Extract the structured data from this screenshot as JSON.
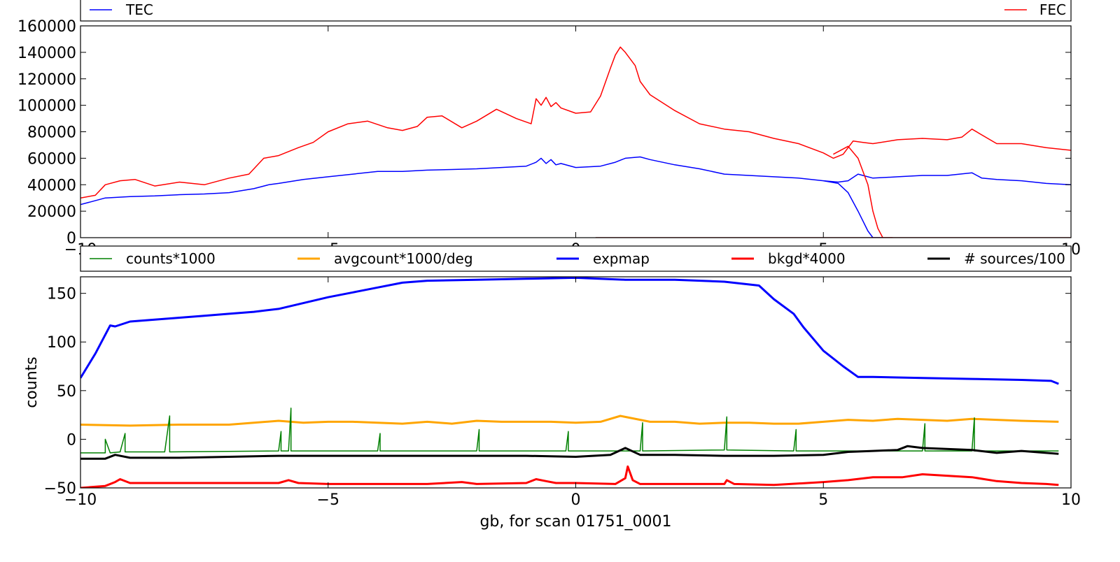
{
  "chart_data": [
    {
      "type": "line",
      "title": "",
      "xlabel": "",
      "ylabel": "",
      "xlim": [
        -10,
        10
      ],
      "ylim": [
        0,
        160000
      ],
      "xticks": [
        "−10",
        "−5",
        "0",
        "5",
        "10"
      ],
      "yticks": [
        "0",
        "20000",
        "40000",
        "60000",
        "80000",
        "100000",
        "120000",
        "140000",
        "160000"
      ],
      "grid": false,
      "legend_placement": "top",
      "legend": [
        {
          "name": "TEC",
          "color": "#0000ff"
        },
        {
          "name": "FEC",
          "color": "#ff0000"
        }
      ],
      "series": [
        {
          "name": "FEC",
          "color": "#ff0000",
          "x": [
            -10,
            -9.7,
            -9.5,
            -9.2,
            -8.9,
            -8.5,
            -8.0,
            -7.5,
            -7.0,
            -6.6,
            -6.3,
            -6.0,
            -5.6,
            -5.3,
            -5.0,
            -4.6,
            -4.2,
            -3.8,
            -3.5,
            -3.2,
            -3.0,
            -2.7,
            -2.3,
            -2.0,
            -1.6,
            -1.2,
            -0.9,
            -0.8,
            -0.7,
            -0.6,
            -0.5,
            -0.4,
            -0.3,
            0.0,
            0.3,
            0.5,
            0.7,
            0.8,
            0.9,
            1.0,
            1.2,
            1.3,
            1.5,
            2.0,
            2.5,
            3.0,
            3.5,
            4.0,
            4.5,
            5.0,
            5.2,
            5.4,
            5.6,
            5.8,
            6.0,
            6.5,
            7.0,
            7.5,
            7.8,
            8.0,
            8.5,
            9.0,
            9.5,
            10.0
          ],
          "y": [
            30000,
            32000,
            40000,
            43000,
            44000,
            39000,
            42000,
            40000,
            45000,
            48000,
            60000,
            62000,
            68000,
            72000,
            80000,
            86000,
            88000,
            83000,
            81000,
            84000,
            91000,
            92000,
            83000,
            88000,
            97000,
            90000,
            86000,
            105000,
            100000,
            106000,
            99000,
            102000,
            98000,
            94000,
            95000,
            107000,
            128000,
            138000,
            144000,
            140000,
            130000,
            118000,
            108000,
            96000,
            86000,
            82000,
            80000,
            75000,
            71000,
            64000,
            60000,
            63000,
            73000,
            72000,
            71000,
            74000,
            75000,
            74000,
            76000,
            82000,
            71000,
            71000,
            68000,
            66000
          ]
        },
        {
          "name": "TEC",
          "color": "#0000ff",
          "x": [
            -10,
            -9.5,
            -9.0,
            -8.5,
            -8.0,
            -7.5,
            -7.0,
            -6.5,
            -6.2,
            -6.0,
            -5.5,
            -5.0,
            -4.5,
            -4.0,
            -3.5,
            -3.0,
            -2.5,
            -2.0,
            -1.5,
            -1.0,
            -0.8,
            -0.7,
            -0.6,
            -0.5,
            -0.4,
            -0.3,
            0.0,
            0.5,
            0.8,
            1.0,
            1.3,
            1.5,
            2.0,
            2.5,
            3.0,
            3.5,
            4.0,
            4.5,
            5.0,
            5.3,
            5.5,
            5.7,
            6.0,
            6.5,
            7.0,
            7.5,
            8.0,
            8.2,
            8.5,
            9.0,
            9.5,
            10.0
          ],
          "y": [
            25000,
            30000,
            31000,
            31500,
            32500,
            33000,
            34000,
            37000,
            40000,
            41000,
            44000,
            46000,
            48000,
            50000,
            50000,
            51000,
            51500,
            52000,
            53000,
            54000,
            57000,
            60000,
            56000,
            59000,
            55000,
            56000,
            53000,
            54000,
            57000,
            60000,
            61000,
            59000,
            55000,
            52000,
            48000,
            47000,
            46000,
            45000,
            43000,
            42000,
            43000,
            48000,
            45000,
            46000,
            47000,
            47000,
            49000,
            45000,
            44000,
            43000,
            41000,
            40000
          ]
        },
        {
          "name": "",
          "color": "#0000ff",
          "x": [
            5.0,
            5.3,
            5.5,
            5.7,
            5.9,
            6.0,
            6.2
          ],
          "y": [
            43000,
            41000,
            34000,
            20000,
            5000,
            0,
            0
          ]
        },
        {
          "name": "",
          "color": "#ff0000",
          "x": [
            5.2,
            5.5,
            5.7,
            5.9,
            6.0,
            6.1,
            6.2,
            6.4
          ],
          "y": [
            63000,
            69000,
            60000,
            40000,
            20000,
            7000,
            0,
            0
          ]
        },
        {
          "name": "",
          "color": "#880000",
          "x": [
            0.4,
            10.0
          ],
          "y": [
            0,
            0
          ]
        }
      ]
    },
    {
      "type": "line",
      "title": "",
      "xlabel": "gb, for scan 01751_0001",
      "ylabel": "counts",
      "xlim": [
        -10,
        10
      ],
      "ylim": [
        -50,
        167
      ],
      "xticks": [
        "−10",
        "−5",
        "0",
        "5",
        "10"
      ],
      "yticks": [
        "−50",
        "0",
        "50",
        "100",
        "150"
      ],
      "grid": false,
      "legend_placement": "top",
      "legend": [
        {
          "name": "counts*1000",
          "color": "#008000"
        },
        {
          "name": "avgcount*1000/deg",
          "color": "#ffa500"
        },
        {
          "name": "expmap",
          "color": "#0000ff"
        },
        {
          "name": "bkgd*4000",
          "color": "#ff0000"
        },
        {
          "name": "# sources/100",
          "color": "#000000"
        }
      ],
      "series": [
        {
          "name": "expmap",
          "color": "#0000ff",
          "x": [
            -10,
            -9.7,
            -9.4,
            -9.3,
            -9.0,
            -8.5,
            -8.0,
            -7.5,
            -7.0,
            -6.5,
            -6.0,
            -5.5,
            -5.0,
            -4.5,
            -4.0,
            -3.5,
            -3.0,
            -2.0,
            -1.0,
            0.0,
            1.0,
            2.0,
            3.0,
            3.7,
            4.0,
            4.4,
            4.6,
            5.0,
            5.4,
            5.7,
            6.0,
            7.0,
            8.0,
            9.0,
            9.6,
            9.75
          ],
          "y": [
            63,
            88,
            117,
            116,
            121,
            123,
            125,
            127,
            129,
            131,
            134,
            140,
            146,
            151,
            156,
            161,
            163,
            164,
            165,
            166,
            164,
            164,
            162,
            158,
            144,
            129,
            115,
            91,
            75,
            64,
            64,
            63,
            62,
            61,
            60,
            57
          ]
        },
        {
          "name": "avgcount*1000/deg",
          "color": "#ffa500",
          "x": [
            -10,
            -9.0,
            -8.0,
            -7.0,
            -6.5,
            -6.0,
            -5.5,
            -5.0,
            -4.5,
            -4.0,
            -3.5,
            -3.0,
            -2.5,
            -2.0,
            -1.5,
            -1.0,
            -0.5,
            0.0,
            0.5,
            0.9,
            1.5,
            2.0,
            2.5,
            3.0,
            3.5,
            4.0,
            4.5,
            5.0,
            5.5,
            6.0,
            6.5,
            7.0,
            7.5,
            8.0,
            8.5,
            9.0,
            9.75
          ],
          "y": [
            15,
            14,
            15,
            15,
            17,
            19,
            17,
            18,
            18,
            17,
            16,
            18,
            16,
            19,
            18,
            18,
            18,
            17,
            18,
            24,
            18,
            18,
            16,
            17,
            17,
            16,
            16,
            18,
            20,
            19,
            21,
            20,
            19,
            21,
            20,
            19,
            18
          ]
        },
        {
          "name": "counts*1000",
          "color": "#008000",
          "x": [
            -10.0,
            -9.5,
            -9.5,
            -9.4,
            -9.2,
            -9.1,
            -9.1,
            -8.3,
            -8.2,
            -8.2,
            -6.0,
            -5.95,
            -5.95,
            -5.8,
            -5.75,
            -5.75,
            -4.0,
            -3.95,
            -3.95,
            -2.0,
            -1.95,
            -1.95,
            -0.2,
            -0.15,
            -0.15,
            1.3,
            1.35,
            1.35,
            3.0,
            3.05,
            3.05,
            4.4,
            4.45,
            4.45,
            7.0,
            7.05,
            7.05,
            8.0,
            8.05,
            8.05,
            9.75
          ],
          "y": [
            -14,
            -14,
            0,
            -14,
            -13,
            6,
            -13,
            -13,
            24,
            -13,
            -12,
            8,
            -12,
            -12,
            32,
            -12,
            -12,
            6,
            -12,
            -12,
            10,
            -12,
            -12,
            8,
            -12,
            -12,
            17,
            -12,
            -11,
            23,
            -11,
            -12,
            10,
            -12,
            -12,
            16,
            -12,
            -12,
            22,
            -12,
            -12
          ]
        },
        {
          "name": "# sources/100",
          "color": "#000000",
          "x": [
            -10,
            -9.5,
            -9.3,
            -9.0,
            -8.5,
            -8.0,
            -7.0,
            -6.0,
            -5.0,
            -4.0,
            -3.0,
            -2.0,
            -1.0,
            0.0,
            0.7,
            1.0,
            1.3,
            2.0,
            3.0,
            4.0,
            5.0,
            5.5,
            6.0,
            6.5,
            6.7,
            7.0,
            8.0,
            8.5,
            9.0,
            9.5,
            9.75
          ],
          "y": [
            -20,
            -20,
            -16,
            -19,
            -19,
            -19,
            -18,
            -17,
            -17,
            -17,
            -17,
            -17,
            -17,
            -18,
            -16,
            -9,
            -16,
            -16,
            -17,
            -17,
            -16,
            -13,
            -12,
            -11,
            -7,
            -9,
            -11,
            -14,
            -12,
            -14,
            -15
          ]
        },
        {
          "name": "bkgd*4000",
          "color": "#ff0000",
          "x": [
            -10,
            -9.5,
            -9.3,
            -9.2,
            -9.0,
            -8.0,
            -7.0,
            -6.0,
            -5.8,
            -5.6,
            -5.0,
            -4.0,
            -3.0,
            -2.3,
            -2.0,
            -1.0,
            -0.8,
            -0.6,
            -0.4,
            0.0,
            0.8,
            1.0,
            1.05,
            1.15,
            1.3,
            2.0,
            3.0,
            3.05,
            3.2,
            4.0,
            5.0,
            5.5,
            6.0,
            6.6,
            7.0,
            8.0,
            8.5,
            9.0,
            9.5,
            9.75
          ],
          "y": [
            -50,
            -48,
            -44,
            -41,
            -45,
            -45,
            -45,
            -45,
            -42,
            -45,
            -46,
            -46,
            -46,
            -44,
            -46,
            -45,
            -41,
            -43,
            -45,
            -45,
            -46,
            -40,
            -28,
            -42,
            -46,
            -46,
            -46,
            -42,
            -46,
            -47,
            -44,
            -42,
            -39,
            -39,
            -36,
            -39,
            -43,
            -45,
            -46,
            -47
          ]
        }
      ]
    }
  ]
}
